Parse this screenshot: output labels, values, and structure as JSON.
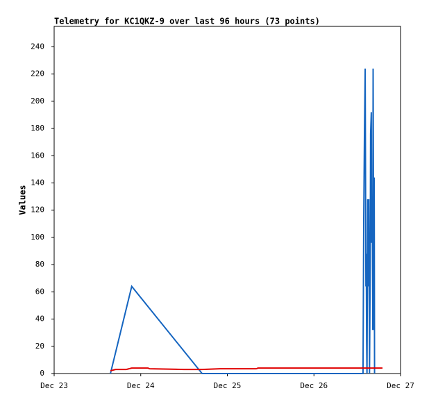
{
  "chart_data": {
    "type": "line",
    "title": "Telemetry for KC1QKZ-9 over last 96 hours (73 points)",
    "y_label": "Values",
    "xlim": [
      0,
      96
    ],
    "xticks": [
      {
        "value": 0,
        "label": "Dec 23"
      },
      {
        "value": 24,
        "label": "Dec 24"
      },
      {
        "value": 48,
        "label": "Dec 25"
      },
      {
        "value": 72,
        "label": "Dec 26"
      },
      {
        "value": 96,
        "label": "Dec 27"
      }
    ],
    "ylim": [
      0,
      255
    ],
    "yticks": [
      0,
      20,
      40,
      60,
      80,
      100,
      120,
      140,
      160,
      180,
      200,
      220,
      240
    ],
    "grid": false,
    "series": [
      {
        "color": "#1565c0",
        "x": [
          15.6,
          21.5,
          41,
          85.6,
          85.7,
          85.8,
          86.0,
          86.2,
          86.4,
          86.5,
          86.6,
          86.7,
          86.9,
          87.0,
          87.2,
          87.4,
          87.6,
          87.7,
          87.9,
          88.0,
          88.2,
          88.3,
          88.4,
          88.5,
          88.6,
          88.7,
          88.8
        ],
        "values": [
          0,
          64,
          0,
          0,
          56,
          112,
          176,
          224,
          64,
          88,
          24,
          0,
          128,
          64,
          128,
          0,
          80,
          176,
          192,
          96,
          112,
          32,
          224,
          128,
          32,
          144,
          0
        ]
      },
      {
        "color": "#e00000",
        "x": [
          15.6,
          17,
          20,
          21.5,
          26,
          26.5,
          36,
          41,
          46,
          56,
          56.5,
          85,
          91
        ],
        "values": [
          2,
          3,
          3,
          4,
          4,
          3.5,
          3,
          3,
          3.5,
          3.5,
          4,
          4,
          4
        ]
      }
    ]
  }
}
